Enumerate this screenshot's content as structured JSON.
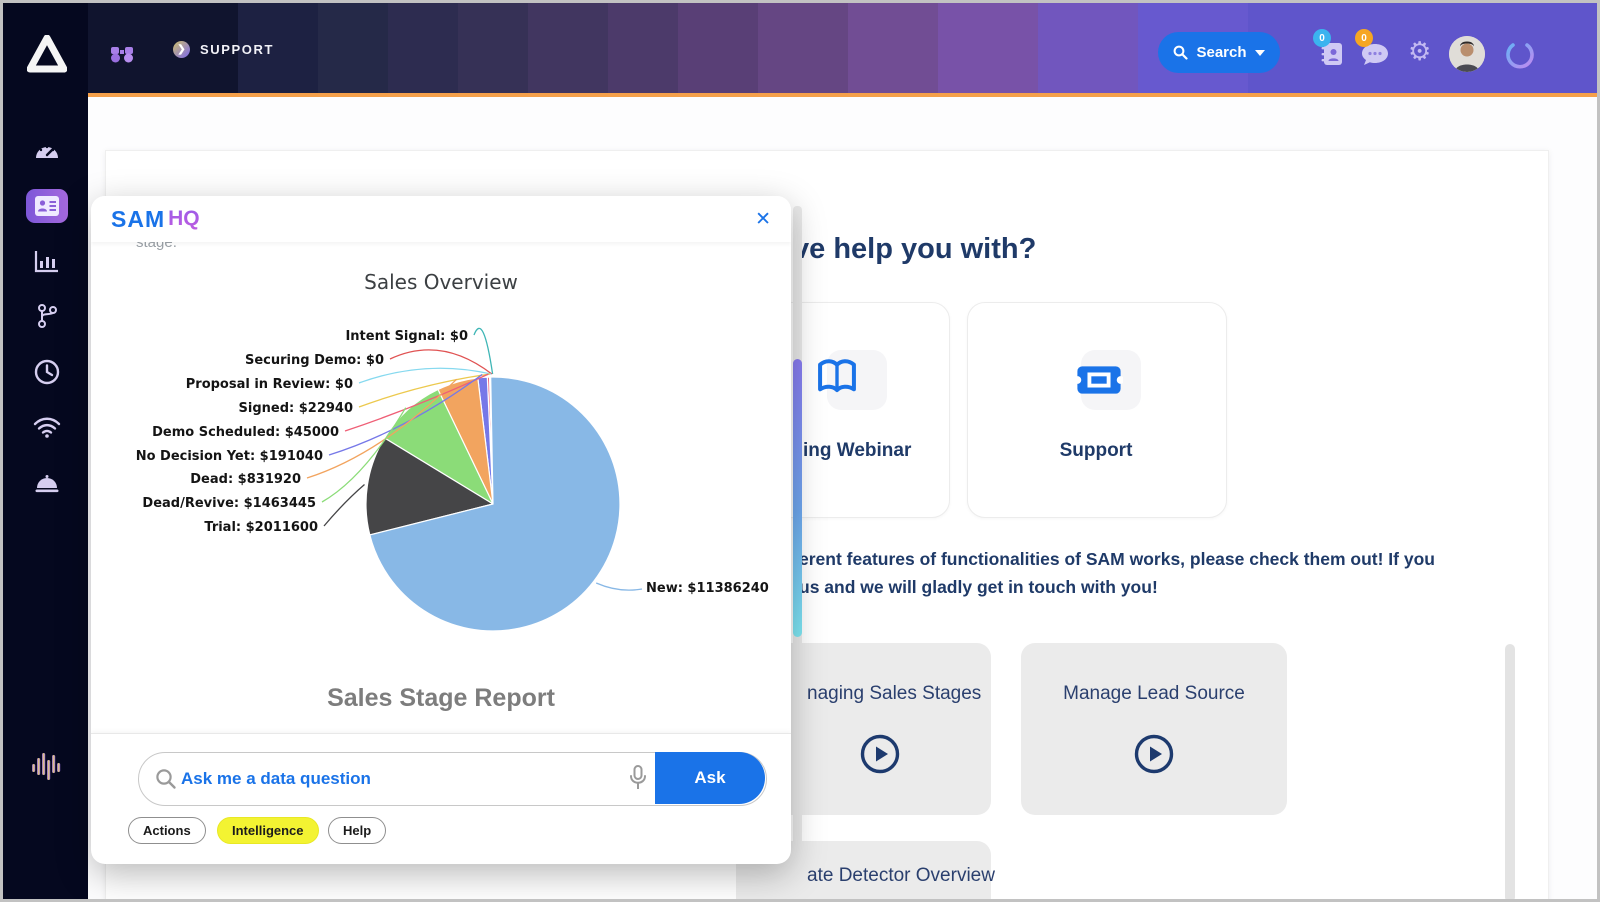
{
  "topbar": {
    "support_label": "SUPPORT",
    "search_label": "Search",
    "book_badge": "0",
    "chat_badge": "0"
  },
  "sidebar": {
    "brand_sam": "SAM",
    "brand_hq": "HQ"
  },
  "page": {
    "heading_fragment": "ve help you with?",
    "feature_cards": [
      {
        "label": "ing Webinar"
      },
      {
        "label": "Support"
      }
    ],
    "paragraph_lines": [
      "erent features of functionalities of SAM works, please check them out! If you",
      "us and we will gladly get in touch with you!"
    ],
    "video_cards": [
      {
        "label": "naging Sales Stages"
      },
      {
        "label": "Manage Lead Source"
      },
      {
        "label": "ate Detector Overview"
      }
    ]
  },
  "modal": {
    "brand_sam": "SAM",
    "brand_hq": "HQ",
    "close_label": "✕",
    "scrolled_text_fragment": "stage.",
    "report_title": "Sales Stage Report",
    "search": {
      "placeholder": "Ask me a data question",
      "ask_label": "Ask"
    },
    "chips": [
      {
        "label": "Actions",
        "active": false
      },
      {
        "label": "Intelligence",
        "active": true
      },
      {
        "label": "Help",
        "active": false
      }
    ]
  },
  "colors": {
    "accent_blue": "#1a73e8",
    "navy_text": "#1f3a68",
    "orange_divider": "#f5a04a",
    "chip_active_bg": "#f3f332"
  },
  "chart_data": {
    "type": "pie",
    "title": "Sales Overview",
    "unit": "$",
    "label_format": "{label}: ${value}",
    "start_angle": 90,
    "direction": "counterclockwise",
    "legend": "none",
    "items": [
      {
        "label": "Intent Signal",
        "value": 0,
        "color": "#3fb6b6"
      },
      {
        "label": "Securing Demo",
        "value": 0,
        "color": "#e05252"
      },
      {
        "label": "Proposal in Review",
        "value": 0,
        "color": "#86d9ef"
      },
      {
        "label": "Signed",
        "value": 22940,
        "color": "#ecc94e"
      },
      {
        "label": "Demo Scheduled",
        "value": 45000,
        "color": "#ef5f76"
      },
      {
        "label": "No Decision Yet",
        "value": 191040,
        "color": "#7678e8"
      },
      {
        "label": "Dead",
        "value": 831920,
        "color": "#f2a45f"
      },
      {
        "label": "Dead/Revive",
        "value": 1463445,
        "color": "#8bdc78"
      },
      {
        "label": "Trial",
        "value": 2011600,
        "color": "#454547"
      },
      {
        "label": "New",
        "value": 11386240,
        "color": "#88b8e6"
      }
    ]
  }
}
